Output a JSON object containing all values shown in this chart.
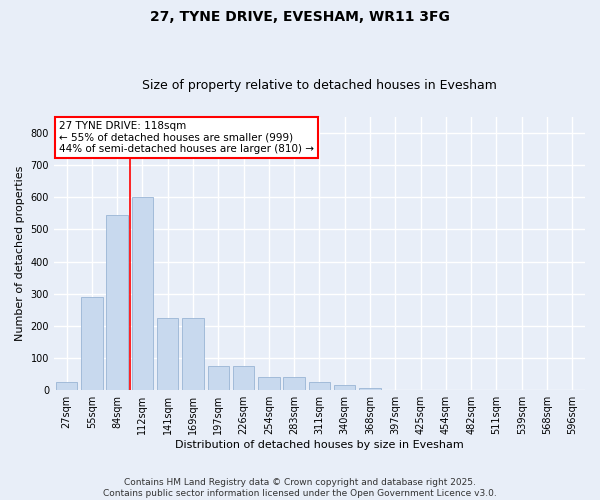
{
  "title": "27, TYNE DRIVE, EVESHAM, WR11 3FG",
  "subtitle": "Size of property relative to detached houses in Evesham",
  "xlabel": "Distribution of detached houses by size in Evesham",
  "ylabel": "Number of detached properties",
  "footer_line1": "Contains HM Land Registry data © Crown copyright and database right 2025.",
  "footer_line2": "Contains public sector information licensed under the Open Government Licence v3.0.",
  "categories": [
    "27sqm",
    "55sqm",
    "84sqm",
    "112sqm",
    "141sqm",
    "169sqm",
    "197sqm",
    "226sqm",
    "254sqm",
    "283sqm",
    "311sqm",
    "340sqm",
    "368sqm",
    "397sqm",
    "425sqm",
    "454sqm",
    "482sqm",
    "511sqm",
    "539sqm",
    "568sqm",
    "596sqm"
  ],
  "values": [
    25,
    290,
    545,
    600,
    225,
    225,
    75,
    75,
    40,
    40,
    25,
    15,
    8,
    0,
    0,
    0,
    0,
    0,
    0,
    0,
    0
  ],
  "bar_color": "#c8d9ee",
  "bar_edge_color": "#9ab5d5",
  "ylim": [
    0,
    850
  ],
  "yticks": [
    0,
    100,
    200,
    300,
    400,
    500,
    600,
    700,
    800
  ],
  "property_line_x": 2.5,
  "property_line_color": "red",
  "annotation_text": "27 TYNE DRIVE: 118sqm\n← 55% of detached houses are smaller (999)\n44% of semi-detached houses are larger (810) →",
  "annotation_box_facecolor": "white",
  "annotation_box_edgecolor": "red",
  "background_color": "#e8eef8",
  "plot_background_color": "#e8eef8",
  "grid_color": "white",
  "title_fontsize": 10,
  "subtitle_fontsize": 9,
  "annotation_fontsize": 7.5,
  "footer_fontsize": 6.5,
  "ylabel_fontsize": 8,
  "xlabel_fontsize": 8,
  "tick_fontsize": 7
}
